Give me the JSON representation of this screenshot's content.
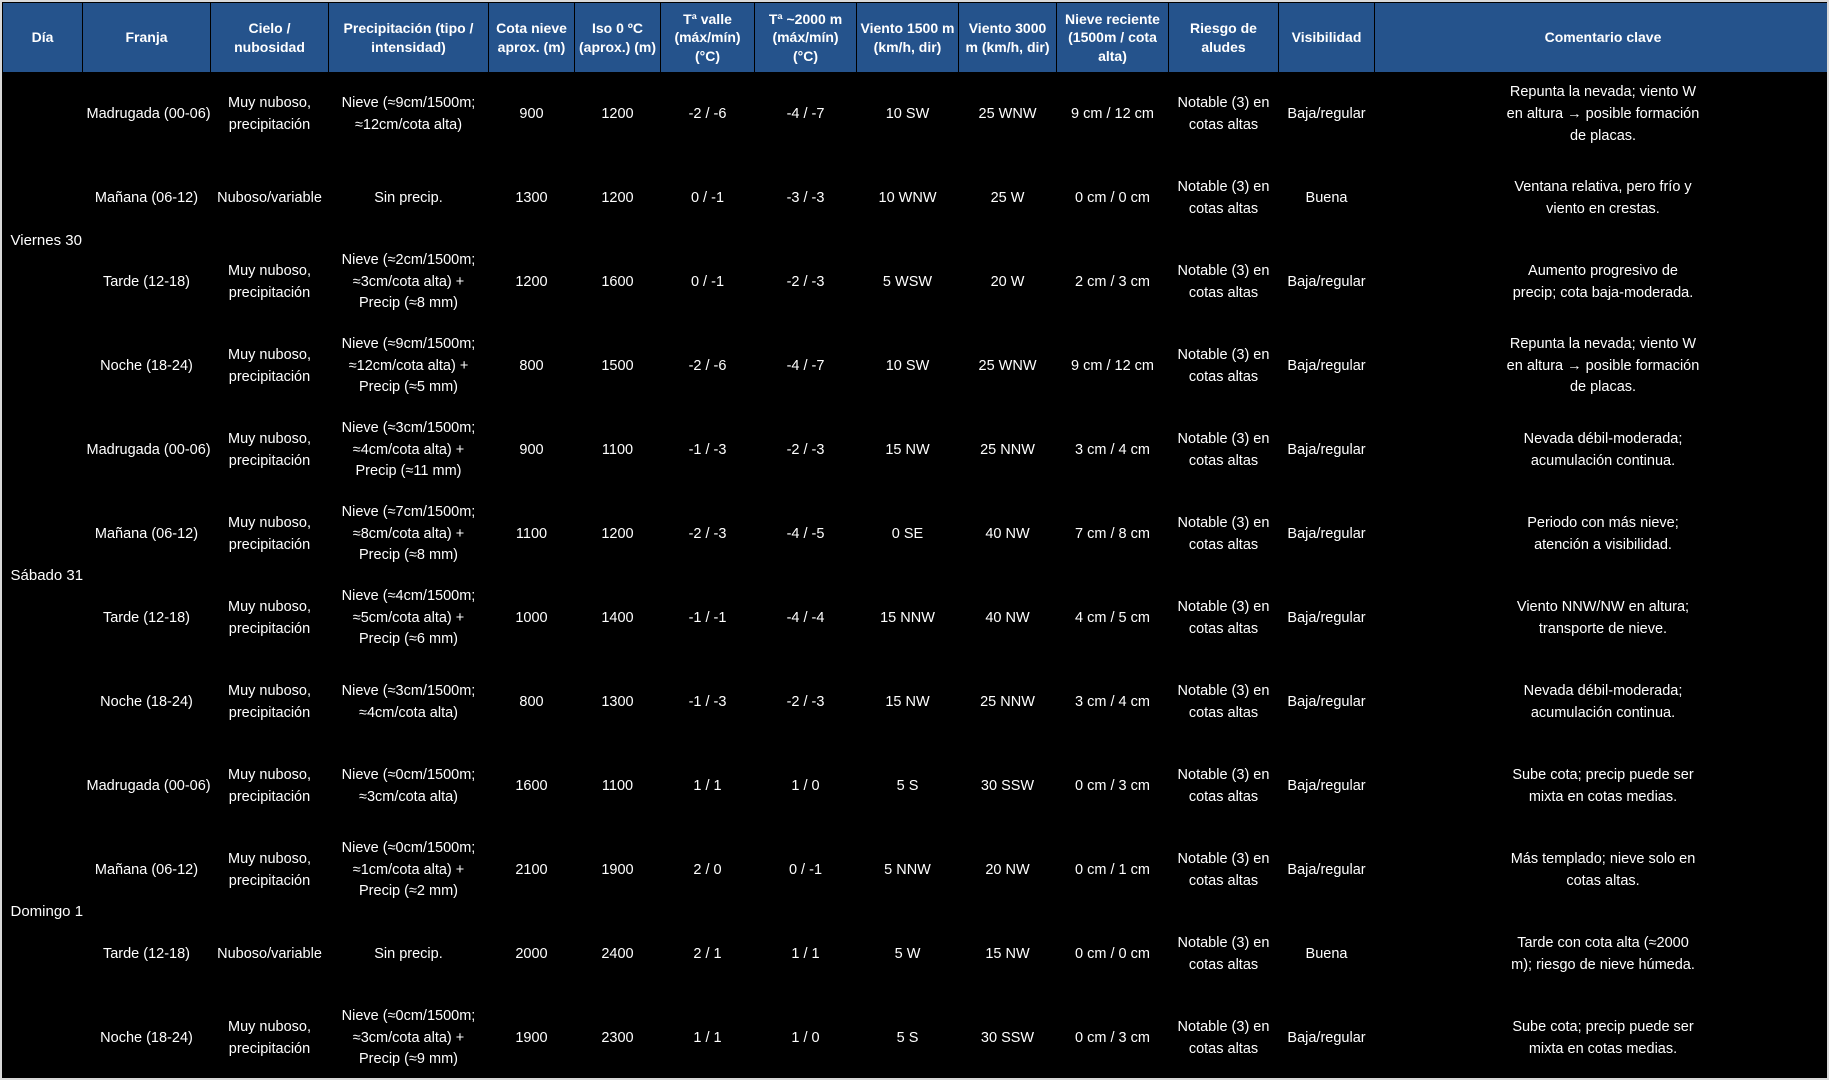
{
  "colors": {
    "header_bg": "#25538c",
    "body_bg": "#000000",
    "text": "#ffffff"
  },
  "table": {
    "columns": [
      "Día",
      "Franja",
      "Cielo / nubosidad",
      "Precipitación (tipo / intensidad)",
      "Cota nieve aprox. (m)",
      "Iso 0 ºC (aprox.) (m)",
      "Tª valle (máx/mín) (°C)",
      "Tª ~2000 m (máx/mín) (°C)",
      "Viento 1500 m (km/h, dir)",
      "Viento 3000 m (km/h, dir)",
      "Nieve reciente (1500m / cota alta)",
      "Riesgo de aludes",
      "Visibilidad",
      "Comentario clave"
    ],
    "days": [
      {
        "label": "Viernes 30",
        "rows": [
          {
            "franja": "Madrugada (00-06)",
            "cielo": "Muy nuboso, precipitación",
            "precipitacion": "Nieve (≈9cm/1500m; ≈12cm/cota alta)",
            "cota_nieve": "900",
            "iso0": "1200",
            "t_valle": "-2 / -6",
            "t_2000": "-4 / -7",
            "viento_1500": "10 SW",
            "viento_3000": "25 WNW",
            "nieve_reciente": "9 cm / 12 cm",
            "riesgo_aludes": "Notable (3) en cotas altas",
            "visibilidad": "Baja/regular",
            "comentario": "Repunta la nevada; viento W en altura → posible formación de placas."
          },
          {
            "franja": "Mañana (06-12)",
            "cielo": "Nuboso/variable",
            "precipitacion": "Sin precip.",
            "cota_nieve": "1300",
            "iso0": "1200",
            "t_valle": "0 / -1",
            "t_2000": "-3 / -3",
            "viento_1500": "10 WNW",
            "viento_3000": "25 W",
            "nieve_reciente": "0 cm / 0 cm",
            "riesgo_aludes": "Notable (3) en cotas altas",
            "visibilidad": "Buena",
            "comentario": "Ventana relativa, pero frío y viento en crestas."
          },
          {
            "franja": "Tarde (12-18)",
            "cielo": "Muy nuboso, precipitación",
            "precipitacion": "Nieve (≈2cm/1500m; ≈3cm/cota alta) + Precip (≈8 mm)",
            "cota_nieve": "1200",
            "iso0": "1600",
            "t_valle": "0 / -1",
            "t_2000": "-2 / -3",
            "viento_1500": "5 WSW",
            "viento_3000": "20 W",
            "nieve_reciente": "2 cm / 3 cm",
            "riesgo_aludes": "Notable (3) en cotas altas",
            "visibilidad": "Baja/regular",
            "comentario": "Aumento progresivo de precip; cota baja-moderada."
          },
          {
            "franja": "Noche (18-24)",
            "cielo": "Muy nuboso, precipitación",
            "precipitacion": "Nieve (≈9cm/1500m; ≈12cm/cota alta) + Precip (≈5 mm)",
            "cota_nieve": "800",
            "iso0": "1500",
            "t_valle": "-2 / -6",
            "t_2000": "-4 / -7",
            "viento_1500": "10 SW",
            "viento_3000": "25 WNW",
            "nieve_reciente": "9 cm / 12 cm",
            "riesgo_aludes": "Notable (3) en cotas altas",
            "visibilidad": "Baja/regular",
            "comentario": "Repunta la nevada; viento W en altura → posible formación de placas."
          }
        ]
      },
      {
        "label": "Sábado 31",
        "rows": [
          {
            "franja": "Madrugada (00-06)",
            "cielo": "Muy nuboso, precipitación",
            "precipitacion": "Nieve (≈3cm/1500m; ≈4cm/cota alta) + Precip (≈11 mm)",
            "cota_nieve": "900",
            "iso0": "1100",
            "t_valle": "-1 / -3",
            "t_2000": "-2 / -3",
            "viento_1500": "15 NW",
            "viento_3000": "25 NNW",
            "nieve_reciente": "3 cm / 4 cm",
            "riesgo_aludes": "Notable (3) en cotas altas",
            "visibilidad": "Baja/regular",
            "comentario": "Nevada débil-moderada; acumulación continua."
          },
          {
            "franja": "Mañana (06-12)",
            "cielo": "Muy nuboso, precipitación",
            "precipitacion": "Nieve (≈7cm/1500m; ≈8cm/cota alta) + Precip (≈8 mm)",
            "cota_nieve": "1100",
            "iso0": "1200",
            "t_valle": "-2 / -3",
            "t_2000": "-4 / -5",
            "viento_1500": "0 SE",
            "viento_3000": "40 NW",
            "nieve_reciente": "7 cm / 8 cm",
            "riesgo_aludes": "Notable (3) en cotas altas",
            "visibilidad": "Baja/regular",
            "comentario": "Periodo con más nieve; atención a visibilidad."
          },
          {
            "franja": "Tarde (12-18)",
            "cielo": "Muy nuboso, precipitación",
            "precipitacion": "Nieve (≈4cm/1500m; ≈5cm/cota alta) + Precip (≈6 mm)",
            "cota_nieve": "1000",
            "iso0": "1400",
            "t_valle": "-1 / -1",
            "t_2000": "-4 / -4",
            "viento_1500": "15 NNW",
            "viento_3000": "40 NW",
            "nieve_reciente": "4 cm / 5 cm",
            "riesgo_aludes": "Notable (3) en cotas altas",
            "visibilidad": "Baja/regular",
            "comentario": "Viento NNW/NW en altura; transporte de nieve."
          },
          {
            "franja": "Noche (18-24)",
            "cielo": "Muy nuboso, precipitación",
            "precipitacion": "Nieve (≈3cm/1500m; ≈4cm/cota alta)",
            "cota_nieve": "800",
            "iso0": "1300",
            "t_valle": "-1 / -3",
            "t_2000": "-2 / -3",
            "viento_1500": "15 NW",
            "viento_3000": "25 NNW",
            "nieve_reciente": "3 cm / 4 cm",
            "riesgo_aludes": "Notable (3) en cotas altas",
            "visibilidad": "Baja/regular",
            "comentario": "Nevada débil-moderada; acumulación continua."
          }
        ]
      },
      {
        "label": "Domingo 1",
        "rows": [
          {
            "franja": "Madrugada (00-06)",
            "cielo": "Muy nuboso, precipitación",
            "precipitacion": "Nieve (≈0cm/1500m; ≈3cm/cota alta)",
            "cota_nieve": "1600",
            "iso0": "1100",
            "t_valle": "1 / 1",
            "t_2000": "1 / 0",
            "viento_1500": "5 S",
            "viento_3000": "30 SSW",
            "nieve_reciente": "0 cm / 3 cm",
            "riesgo_aludes": "Notable (3) en cotas altas",
            "visibilidad": "Baja/regular",
            "comentario": "Sube cota; precip puede ser mixta en cotas medias."
          },
          {
            "franja": "Mañana (06-12)",
            "cielo": "Muy nuboso, precipitación",
            "precipitacion": "Nieve (≈0cm/1500m; ≈1cm/cota alta) + Precip (≈2 mm)",
            "cota_nieve": "2100",
            "iso0": "1900",
            "t_valle": "2 / 0",
            "t_2000": "0 / -1",
            "viento_1500": "5 NNW",
            "viento_3000": "20 NW",
            "nieve_reciente": "0 cm / 1 cm",
            "riesgo_aludes": "Notable (3) en cotas altas",
            "visibilidad": "Baja/regular",
            "comentario": "Más templado; nieve solo en cotas altas."
          },
          {
            "franja": "Tarde (12-18)",
            "cielo": "Nuboso/variable",
            "precipitacion": "Sin precip.",
            "cota_nieve": "2000",
            "iso0": "2400",
            "t_valle": "2 / 1",
            "t_2000": "1 / 1",
            "viento_1500": "5 W",
            "viento_3000": "15 NW",
            "nieve_reciente": "0 cm / 0 cm",
            "riesgo_aludes": "Notable (3) en cotas altas",
            "visibilidad": "Buena",
            "comentario": "Tarde con cota alta (≈2000 m); riesgo de nieve húmeda."
          },
          {
            "franja": "Noche (18-24)",
            "cielo": "Muy nuboso, precipitación",
            "precipitacion": "Nieve (≈0cm/1500m; ≈3cm/cota alta) + Precip (≈9 mm)",
            "cota_nieve": "1900",
            "iso0": "2300",
            "t_valle": "1 / 1",
            "t_2000": "1 / 0",
            "viento_1500": "5 S",
            "viento_3000": "30 SSW",
            "nieve_reciente": "0 cm / 3 cm",
            "riesgo_aludes": "Notable (3) en cotas altas",
            "visibilidad": "Baja/regular",
            "comentario": "Sube cota; precip puede ser mixta en cotas medias."
          }
        ]
      }
    ]
  }
}
